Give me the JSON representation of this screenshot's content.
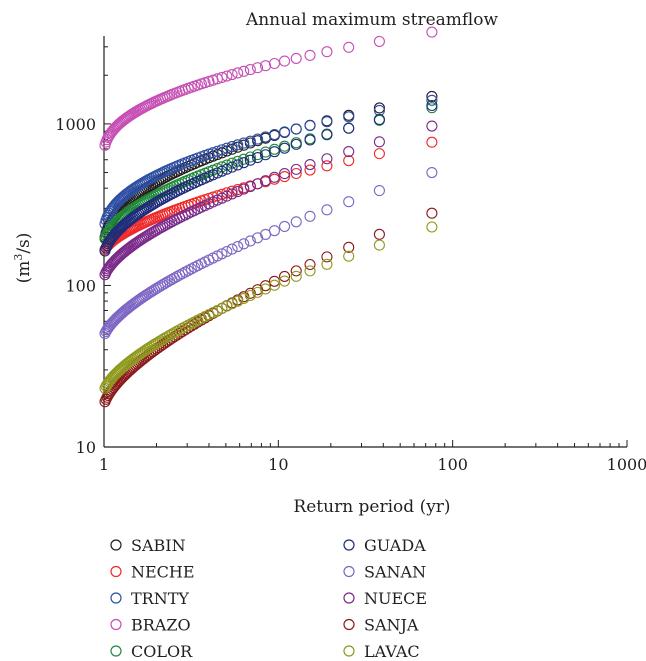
{
  "chart_data": {
    "type": "scatter",
    "title": "Annual maximum streamflow",
    "xlabel": "Return period (yr)",
    "ylabel_base": "(m",
    "ylabel_sup": "3",
    "ylabel_tail": "/s)",
    "x_scale": "log",
    "y_scale": "log",
    "xlim": [
      1,
      1000
    ],
    "ylim": [
      10,
      3500
    ],
    "x_ticks": [
      1,
      10,
      100,
      1000
    ],
    "x_tick_labels": [
      "1",
      "10",
      "100",
      "1000"
    ],
    "y_ticks": [
      10,
      100,
      1000
    ],
    "y_tick_labels": [
      "10",
      "100",
      "1000"
    ],
    "grid": false,
    "legend_position": "bottom",
    "series": [
      {
        "name": "SABIN",
        "color": "#231f20",
        "n": 75,
        "min": 170,
        "max": 1480,
        "shape": 2.2
      },
      {
        "name": "NECHE",
        "color": "#ee2a2a",
        "n": 75,
        "min": 160,
        "max": 770,
        "shape": 1.6
      },
      {
        "name": "TRNTY",
        "color": "#2e4fa3",
        "n": 75,
        "min": 210,
        "max": 1400,
        "shape": 2.2
      },
      {
        "name": "BRAZO",
        "color": "#c64fb4",
        "n": 75,
        "min": 650,
        "max": 3700,
        "shape": 2.2
      },
      {
        "name": "COLOR",
        "color": "#21893a",
        "n": 75,
        "min": 180,
        "max": 1260,
        "shape": 1.8
      },
      {
        "name": "GUADA",
        "color": "#1f2b7a",
        "n": 75,
        "min": 150,
        "max": 1300,
        "shape": 1.8
      },
      {
        "name": "SANAN",
        "color": "#7d66c4",
        "n": 75,
        "min": 48,
        "max": 500,
        "shape": 1.5
      },
      {
        "name": "NUECE",
        "color": "#7a2a8a",
        "n": 75,
        "min": 110,
        "max": 970,
        "shape": 1.6
      },
      {
        "name": "SANJA",
        "color": "#8b1a1a",
        "n": 75,
        "min": 18,
        "max": 280,
        "shape": 1.5
      },
      {
        "name": "LAVAC",
        "color": "#8f9a1f",
        "n": 75,
        "min": 22,
        "max": 230,
        "shape": 1.5
      }
    ]
  }
}
